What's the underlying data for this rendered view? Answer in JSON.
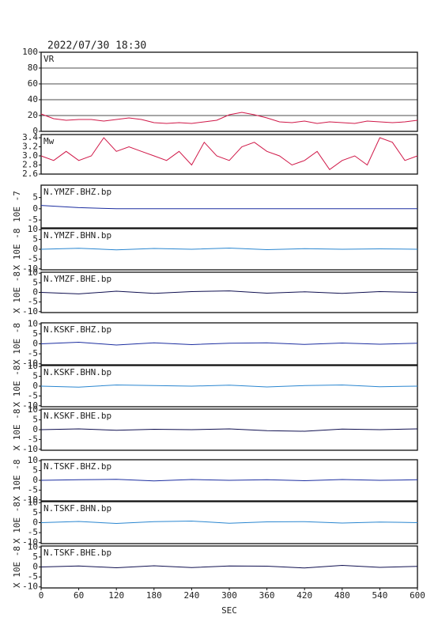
{
  "title": "2022/07/30 18:30",
  "chart_data": [
    {
      "type": "line",
      "title": "VR",
      "ylim": [
        0,
        100
      ],
      "yticks": [
        0,
        20,
        40,
        60,
        80,
        100
      ],
      "grid": true,
      "color": "#d01848",
      "xlim": [
        0,
        600
      ],
      "x": [
        0,
        20,
        40,
        60,
        80,
        100,
        120,
        140,
        160,
        180,
        200,
        220,
        240,
        260,
        280,
        300,
        320,
        340,
        360,
        380,
        400,
        420,
        440,
        460,
        480,
        500,
        520,
        540,
        560,
        580,
        600
      ],
      "values": [
        22,
        16,
        14,
        15,
        15,
        13,
        15,
        17,
        15,
        11,
        10,
        11,
        10,
        12,
        14,
        21,
        24,
        21,
        17,
        12,
        11,
        13,
        10,
        12,
        11,
        10,
        13,
        12,
        11,
        12,
        14
      ]
    },
    {
      "type": "line",
      "title": "Mw",
      "ylim": [
        2.6,
        3.47
      ],
      "yticks": [
        2.6,
        2.8,
        {
          "value": 3,
          "label": "3.0"
        },
        3.2,
        3.4
      ],
      "grid": false,
      "color": "#d01848",
      "xlim": [
        0,
        600
      ],
      "x": [
        0,
        20,
        40,
        60,
        80,
        100,
        120,
        140,
        160,
        180,
        200,
        220,
        240,
        260,
        280,
        300,
        320,
        340,
        360,
        380,
        400,
        420,
        440,
        460,
        480,
        500,
        520,
        540,
        560,
        580,
        600
      ],
      "values": [
        3.0,
        2.9,
        3.1,
        2.9,
        3.0,
        3.4,
        3.1,
        3.2,
        3.1,
        3.0,
        2.9,
        3.1,
        2.8,
        3.3,
        3.0,
        2.9,
        3.2,
        3.3,
        3.1,
        3.0,
        2.8,
        2.9,
        3.1,
        2.7,
        2.9,
        3.0,
        2.8,
        3.4,
        3.3,
        2.9,
        3.0
      ]
    },
    {
      "type": "line",
      "title": "N.YMZF.BHZ.bp",
      "ylabel": "10E -7",
      "ylim": [
        -8.5,
        10.5
      ],
      "yticks": [
        -5,
        0,
        5
      ],
      "color": "#1c2ea0",
      "xlim": [
        0,
        600
      ],
      "x": [
        0,
        60,
        120,
        180,
        240,
        300,
        360,
        420,
        480,
        540,
        600
      ],
      "values": [
        1.5,
        0.5,
        0,
        0,
        0,
        0,
        0,
        0,
        0,
        0,
        0
      ]
    },
    {
      "type": "line",
      "title": "N.YMZF.BHN.bp",
      "ylabel": "X 10E -8",
      "ylim": [
        -10.5,
        10.5
      ],
      "yticks": [
        -10,
        -5,
        0,
        5,
        10
      ],
      "color": "#2a86d0",
      "xlim": [
        0,
        600
      ],
      "x": [
        0,
        60,
        120,
        180,
        240,
        300,
        360,
        420,
        480,
        540,
        600
      ],
      "values": [
        0,
        0.5,
        -0.3,
        0.4,
        0,
        0.6,
        -0.2,
        0.3,
        0,
        0.2,
        0
      ]
    },
    {
      "type": "line",
      "title": "N.YMZF.BHE.bp",
      "ylabel": "X 10E -8",
      "ylim": [
        -10.5,
        10.5
      ],
      "yticks": [
        -10,
        -5,
        0,
        5,
        10
      ],
      "color": "#101050",
      "xlim": [
        0,
        600
      ],
      "x": [
        0,
        60,
        120,
        180,
        240,
        300,
        360,
        420,
        480,
        540,
        600
      ],
      "values": [
        0,
        -0.8,
        0.6,
        -0.5,
        0.4,
        0.8,
        -0.4,
        0.3,
        -0.5,
        0.4,
        0
      ]
    },
    {
      "type": "line",
      "title": "N.KSKF.BHZ.bp",
      "ylabel": "X 10E -8",
      "ylim": [
        -10.5,
        10.5
      ],
      "yticks": [
        -10,
        -5,
        0,
        5,
        10
      ],
      "color": "#1c2ea0",
      "xlim": [
        0,
        600
      ],
      "x": [
        0,
        60,
        120,
        180,
        240,
        300,
        360,
        420,
        480,
        540,
        600
      ],
      "values": [
        0,
        0.8,
        -0.6,
        0.5,
        -0.4,
        0.3,
        0.5,
        -0.3,
        0.4,
        -0.2,
        0.3
      ]
    },
    {
      "type": "line",
      "title": "N.KSKF.BHN.bp",
      "ylabel": "X 10E -8",
      "ylim": [
        -10.5,
        10.5
      ],
      "yticks": [
        -10,
        -5,
        0,
        5,
        10
      ],
      "color": "#2a86d0",
      "xlim": [
        0,
        600
      ],
      "x": [
        0,
        60,
        120,
        180,
        240,
        300,
        360,
        420,
        480,
        540,
        600
      ],
      "values": [
        0,
        -0.5,
        0.6,
        0.3,
        0,
        0.5,
        -0.4,
        0.3,
        0.6,
        -0.3,
        0
      ]
    },
    {
      "type": "line",
      "title": "N.KSKF.BHE.bp",
      "ylabel": "X 10E -8",
      "ylim": [
        -10.5,
        10.5
      ],
      "yticks": [
        -10,
        -5,
        0,
        5,
        10
      ],
      "color": "#101050",
      "xlim": [
        0,
        600
      ],
      "x": [
        0,
        60,
        120,
        180,
        240,
        300,
        360,
        420,
        480,
        540,
        600
      ],
      "values": [
        0,
        0.4,
        -0.3,
        0.2,
        0,
        0.4,
        -0.5,
        -0.8,
        0.3,
        0,
        0.4
      ]
    },
    {
      "type": "line",
      "title": "N.TSKF.BHZ.bp",
      "ylabel": "X 10E -8",
      "ylim": [
        -10.5,
        10.5
      ],
      "yticks": [
        -10,
        -5,
        0,
        5,
        10
      ],
      "color": "#1c2ea0",
      "xlim": [
        0,
        600
      ],
      "x": [
        0,
        60,
        120,
        180,
        240,
        300,
        360,
        420,
        480,
        540,
        600
      ],
      "values": [
        0,
        0.3,
        0.5,
        -0.3,
        0.4,
        0,
        0.3,
        -0.2,
        0.4,
        0,
        0.3
      ]
    },
    {
      "type": "line",
      "title": "N.TSKF.BHN.bp",
      "ylabel": "X 10E -8",
      "ylim": [
        -10.5,
        10.5
      ],
      "yticks": [
        -10,
        -5,
        0,
        5,
        10
      ],
      "color": "#2a86d0",
      "xlim": [
        0,
        600
      ],
      "x": [
        0,
        60,
        120,
        180,
        240,
        300,
        360,
        420,
        480,
        540,
        600
      ],
      "values": [
        0,
        0.6,
        -0.4,
        0.5,
        0.8,
        -0.3,
        0.4,
        0.5,
        -0.2,
        0.3,
        0
      ]
    },
    {
      "type": "line",
      "title": "N.TSKF.BHE.bp",
      "ylabel": "X 10E -8",
      "ylim": [
        -10.5,
        10.5
      ],
      "yticks": [
        -10,
        -5,
        0,
        5,
        10
      ],
      "color": "#101050",
      "xlim": [
        0,
        600
      ],
      "x": [
        0,
        60,
        120,
        180,
        240,
        300,
        360,
        420,
        480,
        540,
        600
      ],
      "values": [
        0,
        0.5,
        -0.4,
        0.6,
        -0.3,
        0.5,
        0.4,
        -0.5,
        0.8,
        -0.2,
        0.3
      ],
      "xlabel": "SEC",
      "xticks": [
        0,
        60,
        120,
        180,
        240,
        300,
        360,
        420,
        480,
        540,
        600
      ]
    }
  ]
}
